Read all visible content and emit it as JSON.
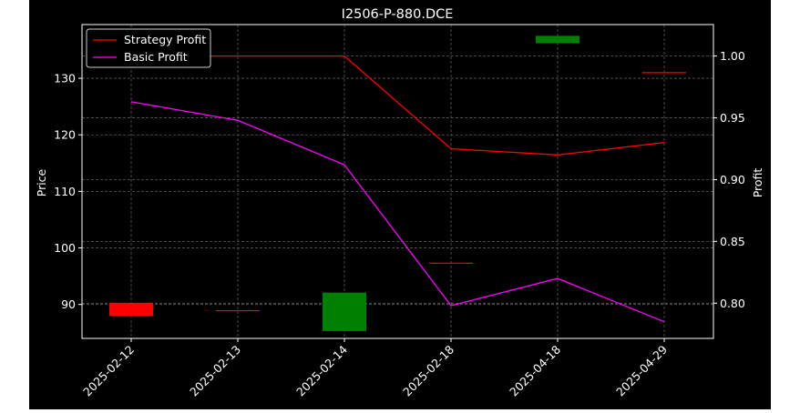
{
  "chart_data": {
    "type": "line",
    "title": "I2506-P-880.DCE",
    "ylabel_left": "Price",
    "ylabel_right": "Profit",
    "xlabel": "",
    "categories": [
      "2025-02-12",
      "2025-02-13",
      "2025-02-14",
      "2025-02-18",
      "2025-04-18",
      "2025-04-29"
    ],
    "left_axis": {
      "ylim": [
        84,
        139.5
      ],
      "ticks": [
        90,
        100,
        110,
        120,
        130
      ]
    },
    "right_axis": {
      "ylim": [
        0.7715,
        1.0255
      ],
      "ticks": [
        0.8,
        0.85,
        0.9,
        0.95,
        1.0
      ],
      "tick_labels": [
        "0.80",
        "0.85",
        "0.90",
        "0.95",
        "1.00"
      ]
    },
    "series": [
      {
        "name": "Strategy Profit",
        "color": "#ff0000",
        "axis": "right",
        "values": [
          1.0,
          1.0,
          1.0,
          0.925,
          0.92,
          0.93
        ]
      },
      {
        "name": "Basic Profit",
        "color": "#ff00ff",
        "axis": "right",
        "values": [
          0.963,
          0.948,
          0.912,
          0.798,
          0.82,
          0.785
        ]
      }
    ],
    "candles": [
      {
        "x": "2025-02-12",
        "open": 90.3,
        "close": 88.0,
        "color": "#ff0000"
      },
      {
        "x": "2025-02-13",
        "open": 88.9,
        "close": 88.9,
        "color": "#ff0000"
      },
      {
        "x": "2025-02-14",
        "open": 85.3,
        "close": 92.1,
        "color": "#008000"
      },
      {
        "x": "2025-02-18",
        "open": 97.3,
        "close": 97.3,
        "color": "#ff0000"
      },
      {
        "x": "2025-04-18",
        "open": 136.2,
        "close": 137.5,
        "color": "#008000"
      },
      {
        "x": "2025-04-29",
        "open": 131.0,
        "close": 131.0,
        "color": "#ff0000"
      }
    ],
    "legend": [
      "Strategy Profit",
      "Basic Profit"
    ],
    "legend_position": "upper-left",
    "grid": true
  }
}
